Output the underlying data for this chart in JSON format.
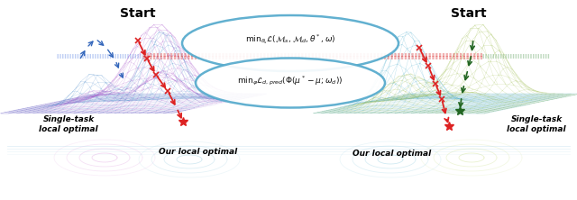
{
  "fig_width": 6.4,
  "fig_height": 2.22,
  "dpi": 100,
  "bg_color": "#ffffff",
  "title_left": "Start",
  "title_right": "Start",
  "label_single_task_left": "Single-task\nlocal optimal",
  "label_single_task_right": "Single-task\nlocal optimal",
  "label_our_optimal_left": "Our local optimal",
  "label_our_optimal_right": "Our local optimal",
  "formula_top": "$\\mathrm{min}_{\\theta_s}\\mathcal{L}(\\mathcal{M}_s,\\mathcal{M}_d,\\theta^*,\\omega)$",
  "formula_bottom": "$\\mathrm{min}_{\\varphi}\\mathcal{L}_{d,pred}(\\Phi(\\mu^*-\\mu;\\omega_d))$"
}
